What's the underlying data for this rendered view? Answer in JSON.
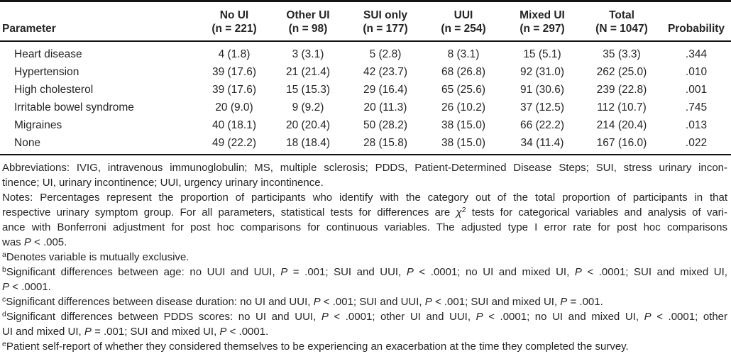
{
  "colors": {
    "background": "#ffffff",
    "text": "#252525",
    "rule": "#141414"
  },
  "table": {
    "columns": [
      {
        "label": "Parameter",
        "n": ""
      },
      {
        "label": "No UI",
        "n": "(n = 221)"
      },
      {
        "label": "Other UI",
        "n": "(n = 98)"
      },
      {
        "label": "SUI only",
        "n": "(n = 177)"
      },
      {
        "label": "UUI",
        "n": "(n = 254)"
      },
      {
        "label": "Mixed UI",
        "n": "(n = 297)"
      },
      {
        "label": "Total",
        "n": "(N = 1047)"
      },
      {
        "label": "Probability",
        "n": ""
      }
    ],
    "rows": [
      {
        "parameter": "Heart disease",
        "values": [
          "4 (1.8)",
          "3 (3.1)",
          "5 (2.8)",
          "8 (3.1)",
          "15 (5.1)",
          "35 (3.3)",
          ".344"
        ]
      },
      {
        "parameter": "Hypertension",
        "values": [
          "39 (17.6)",
          "21 (21.4)",
          "42 (23.7)",
          "68 (26.8)",
          "92 (31.0)",
          "262 (25.0)",
          ".010"
        ]
      },
      {
        "parameter": "High cholesterol",
        "values": [
          "39 (17.6)",
          "15 (15.3)",
          "29 (16.4)",
          "65 (25.6)",
          "91 (30.6)",
          "239 (22.8)",
          ".001"
        ]
      },
      {
        "parameter": "Irritable bowel syndrome",
        "values": [
          "20 (9.0)",
          "9 (9.2)",
          "20 (11.3)",
          "26 (10.2)",
          "37 (12.5)",
          "112 (10.7)",
          ".745"
        ]
      },
      {
        "parameter": "Migraines",
        "values": [
          "40 (18.1)",
          "20 (20.4)",
          "50 (28.2)",
          "38 (15.0)",
          "66 (22.2)",
          "214 (20.4)",
          ".013"
        ]
      },
      {
        "parameter": "None",
        "values": [
          "49 (22.2)",
          "18 (18.4)",
          "28 (15.8)",
          "38 (15.0)",
          "34 (11.4)",
          "167 (16.0)",
          ".022"
        ]
      }
    ]
  },
  "footnotes": {
    "lines": [
      {
        "segments": [
          {
            "st": "r",
            "t": "Abbreviations: IVIG, intravenous immunoglobulin; MS, multiple sclerosis; PDDS, Patient-Determined Disease Steps; SUI, stress urinary incon-"
          }
        ]
      },
      {
        "segments": [
          {
            "st": "r",
            "t": "tinence; UI, urinary incontinence; UUI, urgency urinary incontinence."
          }
        ]
      },
      {
        "segments": [
          {
            "st": "r",
            "t": "Notes: Percentages represent the proportion of participants who identify with the category out of the total proportion of participants in that"
          }
        ]
      },
      {
        "segments": [
          {
            "st": "r",
            "t": "respective urinary symptom group. For all parameters, statistical tests for differences are "
          },
          {
            "st": "i",
            "t": "χ"
          },
          {
            "st": "sup",
            "t": "2"
          },
          {
            "st": "r",
            "t": " tests for categorical variables and analysis of vari-"
          }
        ]
      },
      {
        "segments": [
          {
            "st": "r",
            "t": "ance with Bonferroni adjustment for post hoc comparisons for continuous variables. The adjusted type I error rate for post hoc comparisons"
          }
        ]
      },
      {
        "segments": [
          {
            "st": "r",
            "t": "was "
          },
          {
            "st": "i",
            "t": "P"
          },
          {
            "st": "r",
            "t": " < .005."
          }
        ]
      },
      {
        "segments": [
          {
            "st": "sup",
            "t": "a"
          },
          {
            "st": "r",
            "t": "Denotes variable is mutually exclusive."
          }
        ]
      },
      {
        "segments": [
          {
            "st": "sup",
            "t": "b"
          },
          {
            "st": "r",
            "t": "Significant differences between age: no UUI and UUI, "
          },
          {
            "st": "i",
            "t": "P"
          },
          {
            "st": "r",
            "t": " = .001; SUI and UUI, "
          },
          {
            "st": "i",
            "t": "P"
          },
          {
            "st": "r",
            "t": " < .0001; no UI and mixed UI, "
          },
          {
            "st": "i",
            "t": "P"
          },
          {
            "st": "r",
            "t": " < .0001; SUI and mixed UI,"
          }
        ]
      },
      {
        "segments": [
          {
            "st": "i",
            "t": "P"
          },
          {
            "st": "r",
            "t": " < .0001."
          }
        ]
      },
      {
        "segments": [
          {
            "st": "sup",
            "t": "c"
          },
          {
            "st": "r",
            "t": "Significant differences between disease duration: no UI and UUI, "
          },
          {
            "st": "i",
            "t": "P"
          },
          {
            "st": "r",
            "t": " < .001; SUI and UUI, "
          },
          {
            "st": "i",
            "t": "P"
          },
          {
            "st": "r",
            "t": " < .001; SUI and mixed UI, "
          },
          {
            "st": "i",
            "t": "P"
          },
          {
            "st": "r",
            "t": " = .001."
          }
        ]
      },
      {
        "segments": [
          {
            "st": "sup",
            "t": "d"
          },
          {
            "st": "r",
            "t": "Significant differences between PDDS scores: no UI and UUI, "
          },
          {
            "st": "i",
            "t": "P"
          },
          {
            "st": "r",
            "t": " < .0001; other UI and UUI, "
          },
          {
            "st": "i",
            "t": "P"
          },
          {
            "st": "r",
            "t": " < .0001; no UI and mixed UI, "
          },
          {
            "st": "i",
            "t": "P"
          },
          {
            "st": "r",
            "t": " < .0001; other"
          }
        ]
      },
      {
        "segments": [
          {
            "st": "r",
            "t": "UI and mixed UI, "
          },
          {
            "st": "i",
            "t": "P"
          },
          {
            "st": "r",
            "t": " = .001; SUI and mixed UI, "
          },
          {
            "st": "i",
            "t": "P"
          },
          {
            "st": "r",
            "t": " < .0001."
          }
        ]
      },
      {
        "segments": [
          {
            "st": "sup",
            "t": "e"
          },
          {
            "st": "r",
            "t": "Patient self-report of whether they considered themselves to be experiencing an exacerbation at the time they completed the survey."
          }
        ]
      }
    ]
  }
}
